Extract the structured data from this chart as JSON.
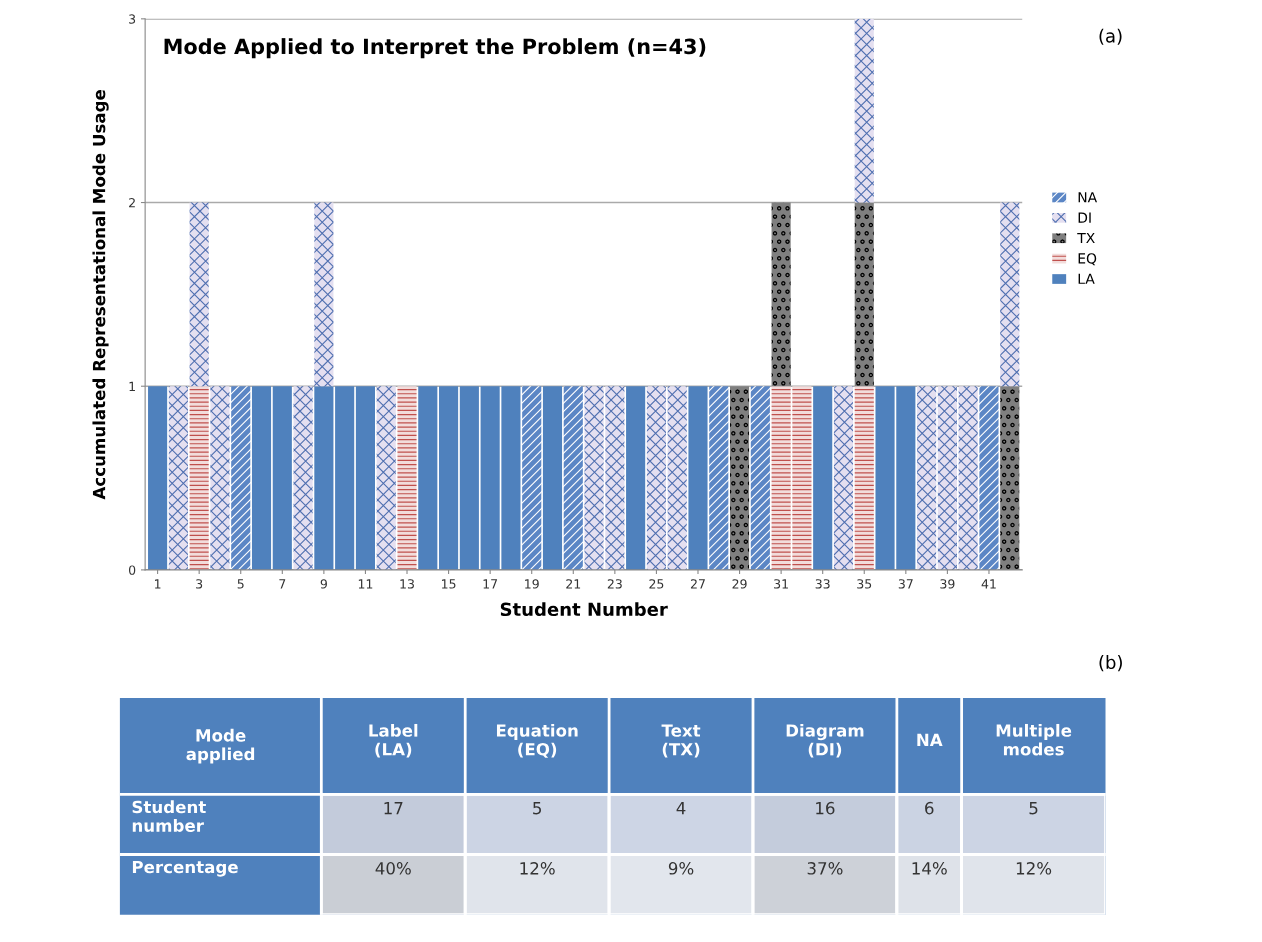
{
  "chart_data": [
    {
      "type": "bar",
      "stacked": true,
      "title": "Mode Applied to Interpret the Problem (n=43)",
      "xlabel": "Student Number",
      "ylabel": "Accumulated Representational Mode Usage",
      "categories": [
        "1",
        null,
        "3",
        null,
        "5",
        null,
        "7",
        null,
        "9",
        null,
        "11",
        null,
        "13",
        null,
        "15",
        null,
        "17",
        null,
        "19",
        null,
        "21",
        null,
        "23",
        null,
        "25",
        null,
        "27",
        null,
        "29",
        null,
        "31",
        null,
        "33",
        null,
        "35",
        null,
        "37",
        null,
        "39",
        null,
        "41",
        null
      ],
      "series": [
        {
          "name": "LA",
          "color": "#4f81bd",
          "values": [
            1,
            null,
            null,
            null,
            null,
            1,
            1,
            null,
            1,
            1,
            1,
            null,
            null,
            1,
            1,
            1,
            1,
            1,
            null,
            1,
            null,
            null,
            null,
            1,
            null,
            null,
            1,
            null,
            null,
            null,
            null,
            null,
            1,
            null,
            null,
            1,
            1,
            null,
            null,
            null,
            null,
            null
          ]
        },
        {
          "name": "EQ",
          "color": "#f2dcdb",
          "values": [
            null,
            null,
            1,
            null,
            null,
            null,
            null,
            null,
            null,
            null,
            null,
            null,
            1,
            null,
            null,
            null,
            null,
            null,
            null,
            null,
            null,
            null,
            null,
            null,
            null,
            null,
            null,
            null,
            null,
            null,
            1,
            1,
            null,
            null,
            1,
            null,
            null,
            null,
            null,
            null,
            null,
            null
          ]
        },
        {
          "name": "TX",
          "color": "#7f7f7f",
          "values": [
            null,
            null,
            null,
            null,
            null,
            null,
            null,
            null,
            null,
            null,
            null,
            null,
            null,
            null,
            null,
            null,
            null,
            null,
            null,
            null,
            null,
            null,
            null,
            null,
            null,
            null,
            null,
            null,
            1,
            null,
            1,
            null,
            null,
            null,
            1,
            null,
            null,
            null,
            null,
            null,
            null,
            1
          ]
        },
        {
          "name": "DI",
          "color": "#e4dff0",
          "values": [
            null,
            1,
            1,
            1,
            null,
            null,
            null,
            1,
            1,
            null,
            null,
            1,
            null,
            null,
            null,
            null,
            null,
            null,
            null,
            null,
            null,
            1,
            1,
            null,
            1,
            1,
            null,
            null,
            null,
            null,
            null,
            null,
            null,
            1,
            1,
            null,
            null,
            1,
            1,
            1,
            null,
            1
          ]
        },
        {
          "name": "NA",
          "color": "#5b86c5",
          "values": [
            null,
            null,
            null,
            null,
            1,
            null,
            null,
            null,
            null,
            null,
            null,
            null,
            null,
            null,
            null,
            null,
            null,
            null,
            1,
            null,
            1,
            null,
            null,
            null,
            null,
            null,
            null,
            1,
            null,
            1,
            null,
            null,
            null,
            null,
            null,
            null,
            null,
            null,
            null,
            null,
            1,
            null
          ]
        }
      ],
      "ylim": [
        0,
        3
      ],
      "yticks": [
        0,
        1,
        2,
        3
      ],
      "grid": "y",
      "legend": "right",
      "annotations": [
        "(a)"
      ]
    },
    {
      "type": "heatmap",
      "xlabel": "Mode applied",
      "categories": [
        "Label (LA)",
        "Equation (EQ)",
        "Text (TX)",
        "Diagram (DI)",
        "NA",
        "Multiple modes"
      ],
      "y_categories": [
        "Student number",
        "Percentage"
      ],
      "cells": [
        [
          17,
          5,
          4,
          16,
          6,
          5
        ],
        [
          40,
          12,
          9,
          37,
          14,
          12
        ]
      ],
      "cell_labels": [
        [
          "17",
          "5",
          "4",
          "16",
          "6",
          "5"
        ],
        [
          "40%",
          "12%",
          "9%",
          "37%",
          "14%",
          "12%"
        ]
      ],
      "annotations": [
        "(b)"
      ]
    }
  ]
}
